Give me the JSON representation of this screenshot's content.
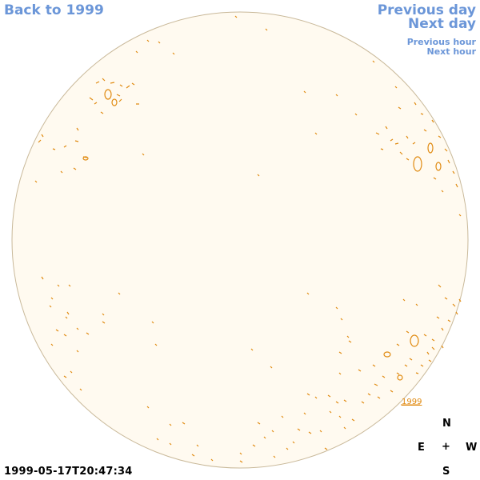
{
  "nav": {
    "back_label": "Back to 1999",
    "previous_day_label": "Previous day",
    "next_day_label": "Next day",
    "previous_hour_label": "Previous hour",
    "next_hour_label": "Next hour"
  },
  "disk": {
    "year_label": "1999",
    "fill_color": "#fffaf0",
    "contour_color": "#e08a10"
  },
  "timestamp": "1999-05-17T20:47:34",
  "compass": {
    "north": "N",
    "east": "E",
    "west": "W",
    "south": "S",
    "center": "+"
  }
}
